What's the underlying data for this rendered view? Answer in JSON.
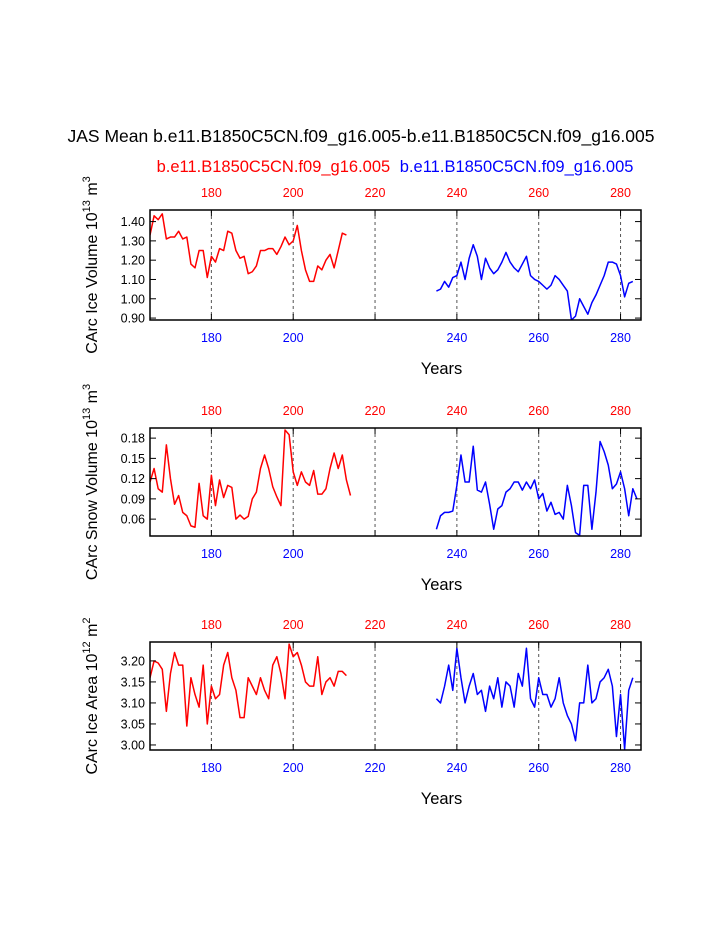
{
  "figure": {
    "title": "JAS Mean b.e11.B1850C5CN.f09_g16.005-b.e11.B1850C5CN.f09_g16.005",
    "legend": [
      {
        "label": "b.e11.B1850C5CN.f09_g16.005",
        "color": "#ff0000"
      },
      {
        "label": "b.e11.B1850C5CN.f09_g16.005",
        "color": "#0000ff"
      }
    ]
  },
  "colors": {
    "red": "#ff0000",
    "blue": "#0000ff",
    "axis": "#000000",
    "grid": "#555555"
  },
  "chart_data": [
    {
      "type": "line",
      "ylabel": "CArc Ice Volume 10",
      "ylabel_exp": "13",
      "ylabel_unit": " m",
      "ylabel_unit_exp": "3",
      "xlabel": "Years",
      "xlim": [
        165,
        285
      ],
      "ylim": [
        0.89,
        1.46
      ],
      "yticks": [
        0.9,
        1.0,
        1.1,
        1.2,
        1.3,
        1.4
      ],
      "ytick_labels": [
        "0.90",
        "1.00",
        "1.10",
        "1.20",
        "1.30",
        "1.40"
      ],
      "xticks": [
        180,
        200,
        220,
        240,
        260,
        280
      ],
      "top_tick_labels": [
        "180",
        "200",
        "220",
        "240",
        "260",
        "280"
      ],
      "bottom_tick_labels": [
        "180",
        "200",
        "",
        "240",
        "260",
        "280"
      ],
      "vlines": [
        180,
        200,
        220,
        240,
        260,
        280
      ],
      "series": [
        {
          "color": "#ff0000",
          "x0": 165,
          "values": [
            1.33,
            1.43,
            1.41,
            1.44,
            1.31,
            1.32,
            1.32,
            1.35,
            1.31,
            1.32,
            1.18,
            1.16,
            1.25,
            1.25,
            1.11,
            1.22,
            1.19,
            1.26,
            1.25,
            1.35,
            1.34,
            1.25,
            1.21,
            1.22,
            1.13,
            1.14,
            1.17,
            1.25,
            1.25,
            1.26,
            1.26,
            1.23,
            1.27,
            1.32,
            1.28,
            1.3,
            1.38,
            1.25,
            1.15,
            1.09,
            1.09,
            1.17,
            1.15,
            1.2,
            1.23,
            1.16,
            1.25,
            1.34,
            1.33
          ]
        },
        {
          "color": "#0000ff",
          "x0": 235,
          "values": [
            1.04,
            1.05,
            1.09,
            1.06,
            1.11,
            1.12,
            1.19,
            1.1,
            1.21,
            1.28,
            1.22,
            1.1,
            1.21,
            1.16,
            1.13,
            1.15,
            1.19,
            1.24,
            1.19,
            1.16,
            1.14,
            1.18,
            1.22,
            1.12,
            1.1,
            1.09,
            1.07,
            1.05,
            1.07,
            1.12,
            1.1,
            1.07,
            1.04,
            0.89,
            0.91,
            1.0,
            0.96,
            0.92,
            0.98,
            1.02,
            1.07,
            1.12,
            1.19,
            1.19,
            1.18,
            1.12,
            1.01,
            1.08,
            1.09
          ]
        }
      ]
    },
    {
      "type": "line",
      "ylabel": "CArc Snow Volume 10",
      "ylabel_exp": "13",
      "ylabel_unit": " m",
      "ylabel_unit_exp": "3",
      "xlabel": "Years",
      "xlim": [
        165,
        285
      ],
      "ylim": [
        0.035,
        0.195
      ],
      "yticks": [
        0.06,
        0.09,
        0.12,
        0.15,
        0.18
      ],
      "ytick_labels": [
        "0.06",
        "0.09",
        "0.12",
        "0.15",
        "0.18"
      ],
      "xticks": [
        180,
        200,
        220,
        240,
        260,
        280
      ],
      "top_tick_labels": [
        "180",
        "200",
        "220",
        "240",
        "260",
        "280"
      ],
      "bottom_tick_labels": [
        "180",
        "200",
        "",
        "240",
        "260",
        "280"
      ],
      "vlines": [
        180,
        200,
        220,
        240,
        260,
        280
      ],
      "series": [
        {
          "color": "#ff0000",
          "x0": 165,
          "values": [
            0.115,
            0.135,
            0.105,
            0.1,
            0.17,
            0.12,
            0.082,
            0.095,
            0.07,
            0.065,
            0.05,
            0.048,
            0.113,
            0.065,
            0.06,
            0.125,
            0.08,
            0.118,
            0.092,
            0.11,
            0.107,
            0.06,
            0.066,
            0.06,
            0.064,
            0.09,
            0.1,
            0.135,
            0.155,
            0.135,
            0.108,
            0.093,
            0.08,
            0.192,
            0.185,
            0.13,
            0.11,
            0.13,
            0.115,
            0.11,
            0.132,
            0.097,
            0.097,
            0.105,
            0.135,
            0.158,
            0.135,
            0.155,
            0.118,
            0.095
          ]
        },
        {
          "color": "#0000ff",
          "x0": 235,
          "values": [
            0.045,
            0.065,
            0.07,
            0.07,
            0.072,
            0.11,
            0.155,
            0.115,
            0.115,
            0.168,
            0.103,
            0.1,
            0.115,
            0.082,
            0.045,
            0.075,
            0.08,
            0.1,
            0.105,
            0.115,
            0.115,
            0.103,
            0.115,
            0.105,
            0.118,
            0.09,
            0.098,
            0.072,
            0.085,
            0.067,
            0.07,
            0.06,
            0.11,
            0.08,
            0.04,
            0.036,
            0.11,
            0.11,
            0.045,
            0.1,
            0.175,
            0.16,
            0.14,
            0.105,
            0.112,
            0.13,
            0.105,
            0.065,
            0.105,
            0.09
          ]
        }
      ]
    },
    {
      "type": "line",
      "ylabel": "CArc Ice Area 10",
      "ylabel_exp": "12",
      "ylabel_unit": " m",
      "ylabel_unit_exp": "2",
      "xlabel": "Years",
      "xlim": [
        165,
        285
      ],
      "ylim": [
        2.988,
        3.245
      ],
      "yticks": [
        3.0,
        3.05,
        3.1,
        3.15,
        3.2
      ],
      "ytick_labels": [
        "3.00",
        "3.05",
        "3.10",
        "3.15",
        "3.20"
      ],
      "xticks": [
        180,
        200,
        220,
        240,
        260,
        280
      ],
      "top_tick_labels": [
        "180",
        "200",
        "220",
        "240",
        "260",
        "280"
      ],
      "bottom_tick_labels": [
        "180",
        "200",
        "220",
        "240",
        "260",
        "280"
      ],
      "vlines": [
        180,
        200,
        220,
        240,
        260,
        280
      ],
      "series": [
        {
          "color": "#ff0000",
          "x0": 165,
          "values": [
            3.16,
            3.2,
            3.195,
            3.18,
            3.08,
            3.17,
            3.22,
            3.19,
            3.19,
            3.045,
            3.16,
            3.12,
            3.09,
            3.19,
            3.05,
            3.14,
            3.11,
            3.12,
            3.19,
            3.22,
            3.16,
            3.13,
            3.065,
            3.065,
            3.16,
            3.14,
            3.12,
            3.16,
            3.13,
            3.11,
            3.19,
            3.21,
            3.17,
            3.11,
            3.24,
            3.21,
            3.22,
            3.19,
            3.15,
            3.14,
            3.14,
            3.21,
            3.12,
            3.15,
            3.16,
            3.14,
            3.175,
            3.175,
            3.165
          ]
        },
        {
          "color": "#0000ff",
          "x0": 235,
          "values": [
            3.11,
            3.1,
            3.14,
            3.19,
            3.13,
            3.23,
            3.16,
            3.1,
            3.14,
            3.17,
            3.12,
            3.13,
            3.08,
            3.14,
            3.11,
            3.16,
            3.09,
            3.15,
            3.14,
            3.09,
            3.17,
            3.14,
            3.23,
            3.11,
            3.09,
            3.16,
            3.12,
            3.12,
            3.09,
            3.11,
            3.16,
            3.1,
            3.07,
            3.05,
            3.01,
            3.1,
            3.1,
            3.19,
            3.1,
            3.11,
            3.15,
            3.16,
            3.18,
            3.14,
            3.02,
            3.12,
            2.99,
            3.13,
            3.16
          ]
        }
      ]
    }
  ]
}
